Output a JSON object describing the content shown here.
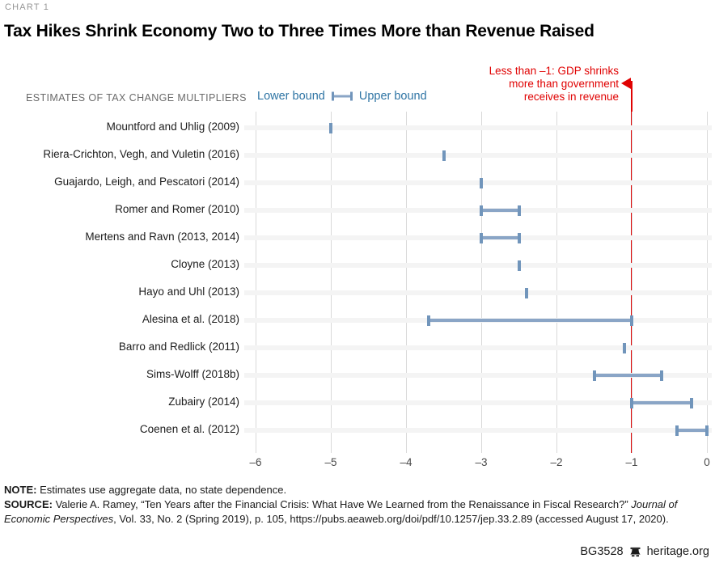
{
  "page": {
    "kicker": "CHART 1",
    "title": "Tax Hikes Shrink Economy Two to Three Times More than Revenue Raised",
    "subtitle": "ESTIMATES OF TAX CHANGE MULTIPLIERS"
  },
  "chart_data": {
    "type": "dumbbell-range",
    "title": "Tax Hikes Shrink Economy Two to Three Times More than Revenue Raised",
    "subtitle": "ESTIMATES OF TAX CHANGE MULTIPLIERS",
    "xlim": [
      -6,
      0
    ],
    "x_ticks": [
      -6,
      -5,
      -4,
      -3,
      -2,
      -1,
      0
    ],
    "x_tick_labels": [
      "–6",
      "–5",
      "–4",
      "–3",
      "–2",
      "–1",
      "0"
    ],
    "grid": "vertical-on",
    "legend": [
      "Lower bound",
      "Upper bound"
    ],
    "legend_position": "top",
    "reference_line": {
      "x": -1,
      "color": "#e00202"
    },
    "annotation": {
      "lines": [
        "Less than –1: GDP shrinks",
        "more than government",
        "receives in revenue"
      ],
      "color": "#e00202",
      "points_at": "reference-line-top"
    },
    "colors": {
      "bar": "#8aa5c6",
      "cap": "#7195bb",
      "legend_text": "#2e74a4"
    },
    "studies": [
      {
        "label": "Mountford and Uhlig (2009)",
        "lower": -5.0,
        "upper": -5.0
      },
      {
        "label": "Riera-Crichton, Vegh, and Vuletin (2016)",
        "lower": -3.5,
        "upper": -3.5
      },
      {
        "label": "Guajardo, Leigh, and Pescatori (2014)",
        "lower": -3.0,
        "upper": -3.0
      },
      {
        "label": "Romer and Romer (2010)",
        "lower": -3.0,
        "upper": -2.5
      },
      {
        "label": "Mertens and Ravn (2013, 2014)",
        "lower": -3.0,
        "upper": -2.5
      },
      {
        "label": "Cloyne (2013)",
        "lower": -2.5,
        "upper": -2.5
      },
      {
        "label": "Hayo and Uhl (2013)",
        "lower": -2.4,
        "upper": -2.4
      },
      {
        "label": "Alesina et al. (2018)",
        "lower": -3.7,
        "upper": -1.0
      },
      {
        "label": "Barro and Redlick (2011)",
        "lower": -1.1,
        "upper": -1.1
      },
      {
        "label": "Sims-Wolff (2018b)",
        "lower": -1.5,
        "upper": -0.6
      },
      {
        "label": "Zubairy (2014)",
        "lower": -1.0,
        "upper": -0.2
      },
      {
        "label": "Coenen et al. (2012)",
        "lower": -0.4,
        "upper": 0.0
      }
    ]
  },
  "footer": {
    "note_label": "NOTE:",
    "note_text": " Estimates use aggregate data, no state dependence.",
    "source_label": "SOURCE:",
    "source_prefix": " Valerie A. Ramey, “Ten Years after the Financial Crisis: What Have We Learned from the Renaissance in Fiscal Research?” ",
    "source_italic": "Journal of Economic Perspectives",
    "source_suffix": ", Vol. 33, No. 2 (Spring 2019), p. 105, https://pubs.aeaweb.org/doi/pdf/10.1257/jep.33.2.89 (accessed August 17, 2020).",
    "credit_id": "BG3528",
    "credit_site": "heritage.org"
  }
}
